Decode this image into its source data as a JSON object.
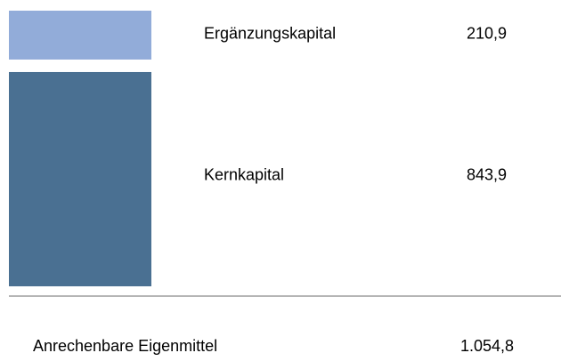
{
  "chart_data": {
    "type": "stacked_bar",
    "series": [
      {
        "name": "Kernkapital",
        "color": "#4a7092",
        "values": [
          843.9
        ],
        "value_labels": [
          "843,9"
        ]
      },
      {
        "name": "Ergänzungskapital",
        "color": "#92acd9",
        "values": [
          210.9
        ],
        "value_labels": [
          "210,9"
        ]
      }
    ],
    "ylim": [
      0,
      1054.8
    ],
    "total": {
      "label": "Anrechenbare Eigenmittel",
      "value": 1054.8,
      "value_label": "1.054,8"
    }
  }
}
